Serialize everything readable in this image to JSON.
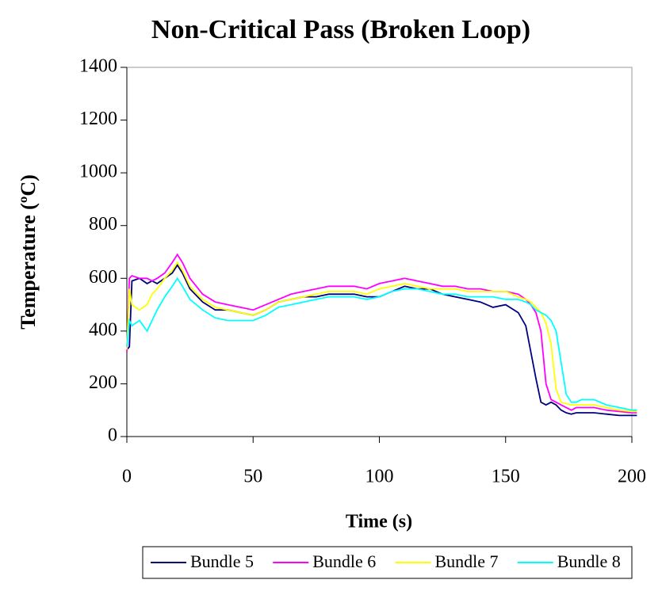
{
  "chart_data": {
    "type": "line",
    "title": "Non-Critical Pass (Broken Loop)",
    "x_label": "Time (s)",
    "y_label": "Temperature (ºC)",
    "x": [
      0,
      1,
      2,
      5,
      8,
      10,
      12,
      15,
      18,
      20,
      22,
      25,
      30,
      35,
      40,
      45,
      50,
      55,
      60,
      65,
      70,
      75,
      80,
      85,
      90,
      95,
      100,
      105,
      110,
      115,
      120,
      125,
      130,
      135,
      140,
      145,
      150,
      155,
      158,
      160,
      162,
      164,
      166,
      168,
      170,
      172,
      174,
      176,
      178,
      180,
      185,
      190,
      195,
      200,
      202
    ],
    "series": [
      {
        "name": "Bundle 5",
        "color": "#000080",
        "values": [
          330,
          340,
          590,
          600,
          580,
          590,
          580,
          600,
          620,
          650,
          620,
          560,
          510,
          480,
          480,
          470,
          460,
          480,
          510,
          520,
          530,
          530,
          540,
          540,
          540,
          530,
          530,
          550,
          570,
          560,
          560,
          540,
          530,
          520,
          510,
          490,
          500,
          470,
          420,
          320,
          220,
          130,
          120,
          130,
          120,
          100,
          90,
          85,
          90,
          90,
          90,
          85,
          80,
          80,
          80
        ]
      },
      {
        "name": "Bundle 6",
        "color": "#ff00ff",
        "values": [
          320,
          600,
          610,
          600,
          600,
          590,
          600,
          620,
          660,
          690,
          660,
          600,
          540,
          510,
          500,
          490,
          480,
          500,
          520,
          540,
          550,
          560,
          570,
          570,
          570,
          560,
          580,
          590,
          600,
          590,
          580,
          570,
          570,
          560,
          560,
          550,
          550,
          540,
          520,
          500,
          470,
          400,
          200,
          140,
          130,
          120,
          110,
          100,
          110,
          110,
          110,
          100,
          95,
          90,
          90
        ]
      },
      {
        "name": "Bundle 7",
        "color": "#ffff00",
        "values": [
          330,
          560,
          500,
          480,
          500,
          540,
          560,
          600,
          630,
          660,
          630,
          570,
          520,
          490,
          480,
          470,
          460,
          480,
          510,
          520,
          530,
          540,
          550,
          550,
          550,
          540,
          560,
          570,
          580,
          570,
          560,
          560,
          560,
          550,
          550,
          550,
          550,
          530,
          520,
          510,
          490,
          470,
          430,
          350,
          180,
          130,
          125,
          120,
          120,
          120,
          120,
          110,
          100,
          95,
          95
        ]
      },
      {
        "name": "Bundle 8",
        "color": "#00ffff",
        "values": [
          340,
          440,
          420,
          440,
          400,
          440,
          480,
          530,
          570,
          600,
          570,
          520,
          480,
          450,
          440,
          440,
          440,
          460,
          490,
          500,
          510,
          520,
          530,
          530,
          530,
          520,
          530,
          550,
          560,
          560,
          550,
          540,
          540,
          530,
          530,
          530,
          520,
          520,
          510,
          500,
          480,
          470,
          460,
          440,
          400,
          280,
          160,
          130,
          130,
          140,
          140,
          120,
          110,
          100,
          100
        ]
      }
    ],
    "xlim": [
      0,
      200
    ],
    "xticks": [
      0,
      50,
      100,
      150,
      200
    ],
    "ylim": [
      0,
      1400
    ],
    "yticks": [
      0,
      200,
      400,
      600,
      800,
      1000,
      1200,
      1400
    ],
    "legend": "bottom"
  }
}
